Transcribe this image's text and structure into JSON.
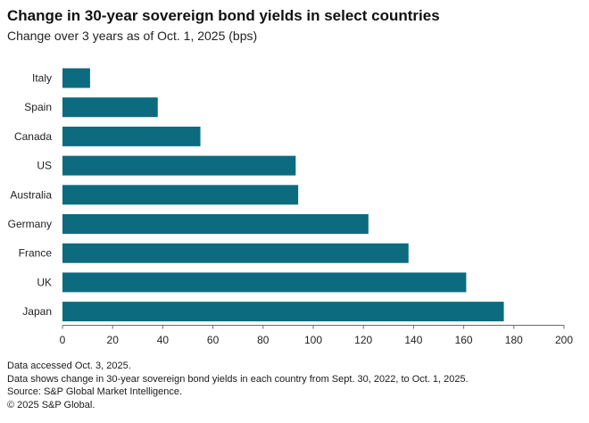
{
  "header": {
    "title": "Change in 30-year sovereign bond yields in select countries",
    "subtitle": "Change over 3 years as of Oct. 1, 2025 (bps)"
  },
  "chart_data": {
    "type": "bar",
    "orientation": "horizontal",
    "categories": [
      "Italy",
      "Spain",
      "Canada",
      "US",
      "Australia",
      "Germany",
      "France",
      "UK",
      "Japan"
    ],
    "values": [
      11,
      38,
      55,
      93,
      94,
      122,
      138,
      161,
      176
    ],
    "xlim": [
      0,
      200
    ],
    "xticks": [
      "0",
      "20",
      "40",
      "60",
      "80",
      "100",
      "120",
      "140",
      "160",
      "180",
      "200"
    ],
    "bar_color": "#0d6b80",
    "grid": false
  },
  "footer": {
    "line1": "Data accessed Oct. 3, 2025.",
    "line2": "Data shows change in 30-year sovereign bond yields in each country from Sept. 30, 2022, to Oct. 1, 2025.",
    "line3": "Source: S&P Global Market Intelligence.",
    "line4": "© 2025 S&P Global."
  }
}
